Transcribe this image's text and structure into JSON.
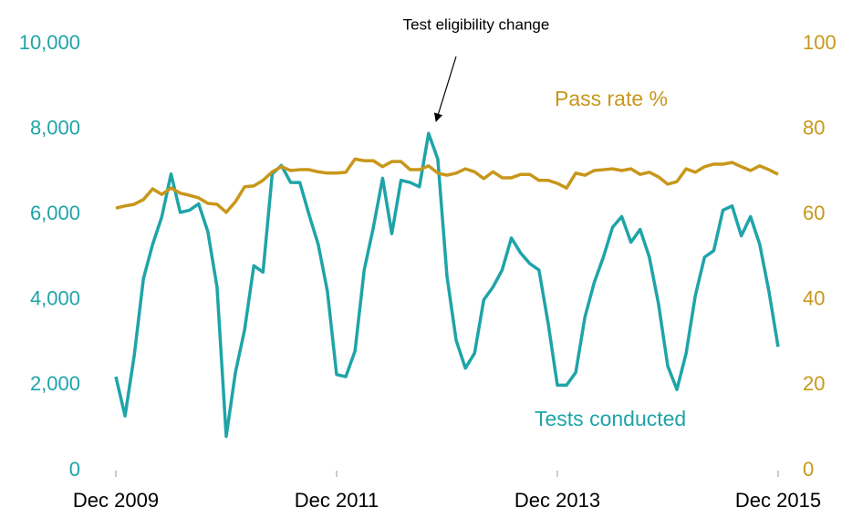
{
  "chart_data": {
    "type": "line",
    "categories": [
      "Dec 2009",
      null,
      null,
      null,
      null,
      null,
      null,
      null,
      null,
      null,
      null,
      null,
      null,
      null,
      null,
      null,
      null,
      null,
      null,
      null,
      null,
      null,
      null,
      null,
      "Dec 2011",
      null,
      null,
      null,
      null,
      null,
      null,
      null,
      null,
      null,
      null,
      null,
      null,
      null,
      null,
      null,
      null,
      null,
      null,
      null,
      null,
      null,
      null,
      null,
      "Dec 2013",
      null,
      null,
      null,
      null,
      null,
      null,
      null,
      null,
      null,
      null,
      null,
      null,
      null,
      null,
      null,
      null,
      null,
      null,
      null,
      null,
      null,
      null,
      null,
      "Dec 2015"
    ],
    "series": [
      {
        "name": "Tests conducted",
        "color": "#1fa4a8",
        "values": [
          2200,
          1280,
          2700,
          4500,
          5300,
          5950,
          6950,
          6050,
          6100,
          6250,
          5600,
          4300,
          800,
          2300,
          3300,
          4800,
          4650,
          6950,
          7150,
          6750,
          6750,
          6000,
          5300,
          4200,
          2250,
          2200,
          2800,
          4700,
          5700,
          6850,
          5550,
          6800,
          6750,
          6650,
          7900,
          7300,
          4550,
          3050,
          2400,
          2750,
          4000,
          4300,
          4700,
          5450,
          5100,
          4850,
          4700,
          3450,
          2000,
          2000,
          2300,
          3600,
          4400,
          5000,
          5700,
          5950,
          5350,
          5650,
          5000,
          3900,
          2450,
          1900,
          2750,
          4100,
          5000,
          5150,
          6100,
          6200,
          5500,
          5950,
          5300,
          4200,
          2900
        ]
      },
      {
        "name": "Pass rate %",
        "color": "#c8971a",
        "axis": "y2",
        "values": [
          61.5,
          62,
          62.4,
          63.5,
          66,
          64.7,
          66.2,
          65,
          64.5,
          63.9,
          62.6,
          62.4,
          60.5,
          63,
          66.5,
          66.7,
          68,
          70,
          71.2,
          70.3,
          70.5,
          70.5,
          70,
          69.7,
          69.7,
          69.9,
          73,
          72.6,
          72.6,
          71.2,
          72.4,
          72.4,
          70.5,
          70.5,
          71.4,
          69.7,
          69.2,
          69.7,
          70.7,
          70,
          68.4,
          70,
          68.6,
          68.6,
          69.4,
          69.4,
          68,
          68,
          67.3,
          66.2,
          69.7,
          69.2,
          70.3,
          70.5,
          70.7,
          70.3,
          70.7,
          69.4,
          69.9,
          68.8,
          67.1,
          67.7,
          70.7,
          69.9,
          71.2,
          71.8,
          71.8,
          72.2,
          71.2,
          70.3,
          71.4,
          70.5,
          69.4
        ]
      }
    ],
    "ylim": [
      0,
      10000
    ],
    "yticks": [
      0,
      {
        "value": 2000,
        "label": "2,000"
      },
      {
        "value": 4000,
        "label": "4,000"
      },
      {
        "value": 6000,
        "label": "6,000"
      },
      {
        "value": 8000,
        "label": "8,000"
      },
      {
        "value": 10000,
        "label": "10,000"
      }
    ],
    "y2lim": [
      0,
      100
    ],
    "y2ticks": [
      0,
      20,
      40,
      60,
      80,
      100
    ],
    "annotations": [
      {
        "text": "Test eligibility change"
      }
    ]
  }
}
